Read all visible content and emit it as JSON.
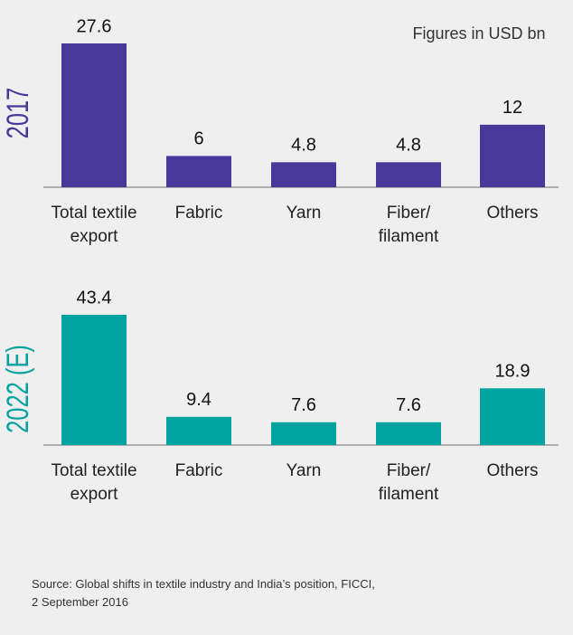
{
  "note": "Figures in USD bn",
  "source": [
    "Source: Global shifts in textile industry and India’s position, FICCI,",
    "2 September 2016"
  ],
  "chart_data": [
    {
      "type": "bar",
      "title": "2017",
      "color": "#47389a",
      "categories": [
        "Total textile export",
        "Fabric",
        "Yarn",
        "Fiber/ filament",
        "Others"
      ],
      "values": [
        27.6,
        6,
        4.8,
        4.8,
        12
      ]
    },
    {
      "type": "bar",
      "title": "2022 (E)",
      "color": "#00a3a0",
      "categories": [
        "Total textile export",
        "Fabric",
        "Yarn",
        "Fiber/ filament",
        "Others"
      ],
      "values": [
        43.4,
        9.4,
        7.6,
        7.6,
        18.9
      ]
    }
  ]
}
